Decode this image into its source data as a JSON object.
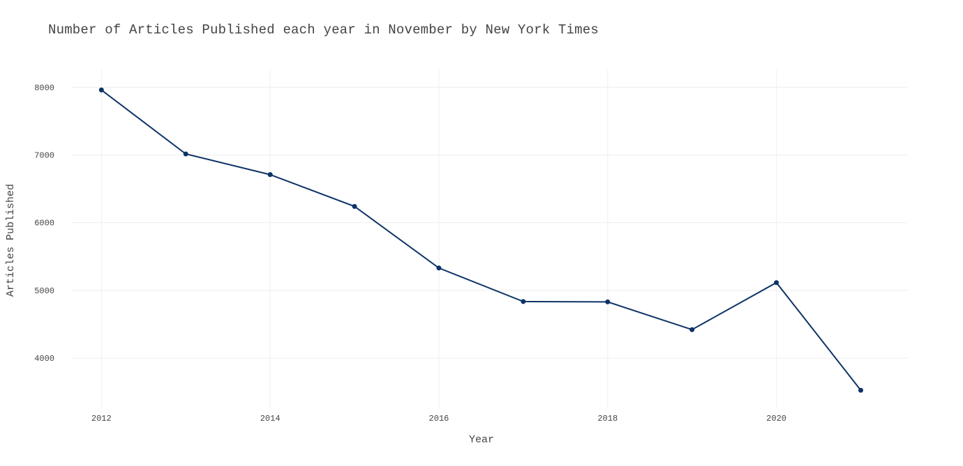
{
  "chart_data": {
    "type": "line",
    "title": "Number of Articles Published each year in November by New York Times",
    "xlabel": "Year",
    "ylabel": "Articles Published",
    "x": [
      2012,
      2013,
      2014,
      2015,
      2016,
      2017,
      2018,
      2019,
      2020,
      2021
    ],
    "series": [
      {
        "values": [
          7960,
          7015,
          6710,
          6240,
          5330,
          4835,
          4830,
          4420,
          5115,
          3525
        ]
      }
    ],
    "xticks": [
      "2012",
      "2014",
      "2016",
      "2018",
      "2020"
    ],
    "yticks": [
      "4000",
      "5000",
      "6000",
      "7000",
      "8000"
    ],
    "xlim": [
      2011.65,
      2021.55
    ],
    "ylim": [
      3260,
      8260
    ],
    "grid": true,
    "line_color": "#0e3366"
  }
}
